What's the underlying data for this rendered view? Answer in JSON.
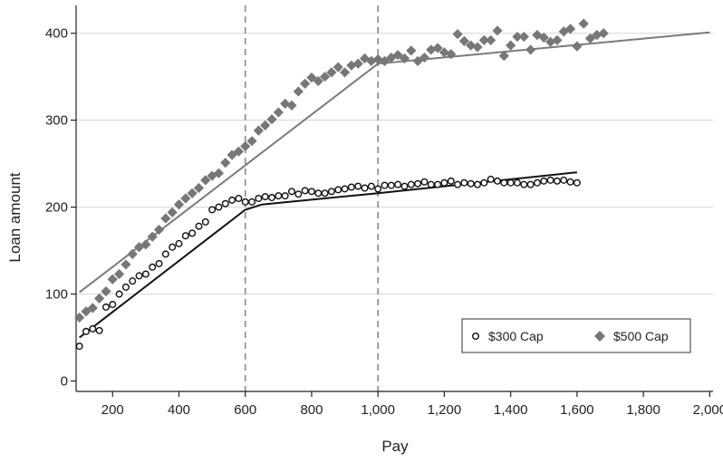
{
  "chart_data": {
    "type": "scatter",
    "title": "",
    "xlabel": "Pay",
    "ylabel": "Loan amount",
    "xlim": [
      90,
      2010
    ],
    "ylim": [
      -12,
      432
    ],
    "xticks": [
      200,
      400,
      600,
      800,
      1000,
      1200,
      1400,
      1600,
      1800,
      2000
    ],
    "xtick_labels": [
      "200",
      "400",
      "600",
      "800",
      "1,000",
      "1,200",
      "1,400",
      "1,600",
      "1,800",
      "2,000"
    ],
    "yticks": [
      0,
      100,
      200,
      300,
      400
    ],
    "ytick_labels": [
      "0",
      "100",
      "200",
      "300",
      "400"
    ],
    "grid": "horizontal",
    "reference_lines_x": [
      600,
      1000
    ],
    "legend": {
      "position": "bottom-right",
      "entries": [
        "$300 Cap",
        "$500 Cap"
      ]
    },
    "series": [
      {
        "name": "$300 Cap",
        "marker": "hollow-circle",
        "color": "#111111",
        "points": [
          [
            100,
            40
          ],
          [
            120,
            57
          ],
          [
            140,
            60
          ],
          [
            160,
            58
          ],
          [
            180,
            85
          ],
          [
            200,
            88
          ],
          [
            220,
            100
          ],
          [
            240,
            108
          ],
          [
            260,
            115
          ],
          [
            280,
            121
          ],
          [
            300,
            123
          ],
          [
            320,
            131
          ],
          [
            340,
            135
          ],
          [
            360,
            146
          ],
          [
            380,
            154
          ],
          [
            400,
            158
          ],
          [
            420,
            167
          ],
          [
            440,
            170
          ],
          [
            460,
            178
          ],
          [
            480,
            183
          ],
          [
            500,
            197
          ],
          [
            520,
            200
          ],
          [
            540,
            204
          ],
          [
            560,
            208
          ],
          [
            580,
            210
          ],
          [
            600,
            206
          ],
          [
            620,
            206
          ],
          [
            640,
            210
          ],
          [
            660,
            212
          ],
          [
            680,
            211
          ],
          [
            700,
            213
          ],
          [
            720,
            213
          ],
          [
            740,
            218
          ],
          [
            760,
            215
          ],
          [
            780,
            219
          ],
          [
            800,
            218
          ],
          [
            820,
            216
          ],
          [
            840,
            216
          ],
          [
            860,
            218
          ],
          [
            880,
            220
          ],
          [
            900,
            221
          ],
          [
            920,
            223
          ],
          [
            940,
            224
          ],
          [
            960,
            222
          ],
          [
            980,
            224
          ],
          [
            1000,
            221
          ],
          [
            1020,
            225
          ],
          [
            1040,
            225
          ],
          [
            1060,
            226
          ],
          [
            1080,
            224
          ],
          [
            1100,
            226
          ],
          [
            1120,
            227
          ],
          [
            1140,
            229
          ],
          [
            1160,
            226
          ],
          [
            1180,
            226
          ],
          [
            1200,
            228
          ],
          [
            1220,
            230
          ],
          [
            1240,
            226
          ],
          [
            1260,
            228
          ],
          [
            1280,
            227
          ],
          [
            1300,
            226
          ],
          [
            1320,
            228
          ],
          [
            1340,
            232
          ],
          [
            1360,
            230
          ],
          [
            1380,
            228
          ],
          [
            1400,
            228
          ],
          [
            1420,
            228
          ],
          [
            1440,
            226
          ],
          [
            1460,
            226
          ],
          [
            1480,
            228
          ],
          [
            1500,
            230
          ],
          [
            1520,
            231
          ],
          [
            1540,
            230
          ],
          [
            1560,
            231
          ],
          [
            1580,
            229
          ],
          [
            1600,
            228
          ]
        ],
        "fit": [
          [
            100,
            50
          ],
          [
            600,
            197
          ],
          [
            650,
            203
          ],
          [
            1000,
            216
          ],
          [
            1600,
            240
          ]
        ]
      },
      {
        "name": "$500 Cap",
        "marker": "filled-diamond",
        "color": "#777777",
        "points": [
          [
            100,
            73
          ],
          [
            120,
            80
          ],
          [
            140,
            84
          ],
          [
            160,
            95
          ],
          [
            180,
            103
          ],
          [
            200,
            117
          ],
          [
            220,
            123
          ],
          [
            240,
            134
          ],
          [
            260,
            146
          ],
          [
            280,
            154
          ],
          [
            300,
            157
          ],
          [
            320,
            166
          ],
          [
            340,
            174
          ],
          [
            360,
            187
          ],
          [
            380,
            194
          ],
          [
            400,
            203
          ],
          [
            420,
            210
          ],
          [
            440,
            216
          ],
          [
            460,
            222
          ],
          [
            480,
            231
          ],
          [
            500,
            236
          ],
          [
            520,
            239
          ],
          [
            540,
            251
          ],
          [
            560,
            260
          ],
          [
            580,
            264
          ],
          [
            600,
            270
          ],
          [
            620,
            276
          ],
          [
            640,
            288
          ],
          [
            660,
            294
          ],
          [
            680,
            301
          ],
          [
            700,
            309
          ],
          [
            720,
            319
          ],
          [
            740,
            317
          ],
          [
            760,
            333
          ],
          [
            780,
            342
          ],
          [
            800,
            349
          ],
          [
            820,
            345
          ],
          [
            840,
            350
          ],
          [
            860,
            355
          ],
          [
            880,
            361
          ],
          [
            900,
            355
          ],
          [
            920,
            363
          ],
          [
            940,
            365
          ],
          [
            960,
            371
          ],
          [
            980,
            368
          ],
          [
            1000,
            370
          ],
          [
            1020,
            368
          ],
          [
            1040,
            372
          ],
          [
            1060,
            375
          ],
          [
            1080,
            371
          ],
          [
            1100,
            380
          ],
          [
            1120,
            368
          ],
          [
            1140,
            372
          ],
          [
            1160,
            381
          ],
          [
            1180,
            383
          ],
          [
            1200,
            378
          ],
          [
            1220,
            376
          ],
          [
            1240,
            399
          ],
          [
            1260,
            391
          ],
          [
            1280,
            386
          ],
          [
            1300,
            384
          ],
          [
            1320,
            392
          ],
          [
            1340,
            392
          ],
          [
            1360,
            403
          ],
          [
            1380,
            374
          ],
          [
            1400,
            386
          ],
          [
            1420,
            396
          ],
          [
            1440,
            396
          ],
          [
            1460,
            381
          ],
          [
            1480,
            398
          ],
          [
            1500,
            395
          ],
          [
            1520,
            390
          ],
          [
            1540,
            392
          ],
          [
            1560,
            402
          ],
          [
            1580,
            405
          ],
          [
            1600,
            385
          ],
          [
            1620,
            411
          ],
          [
            1640,
            394
          ],
          [
            1660,
            398
          ],
          [
            1680,
            400
          ]
        ],
        "fit": [
          [
            100,
            102
          ],
          [
            1000,
            365
          ],
          [
            2000,
            401
          ]
        ]
      }
    ]
  }
}
